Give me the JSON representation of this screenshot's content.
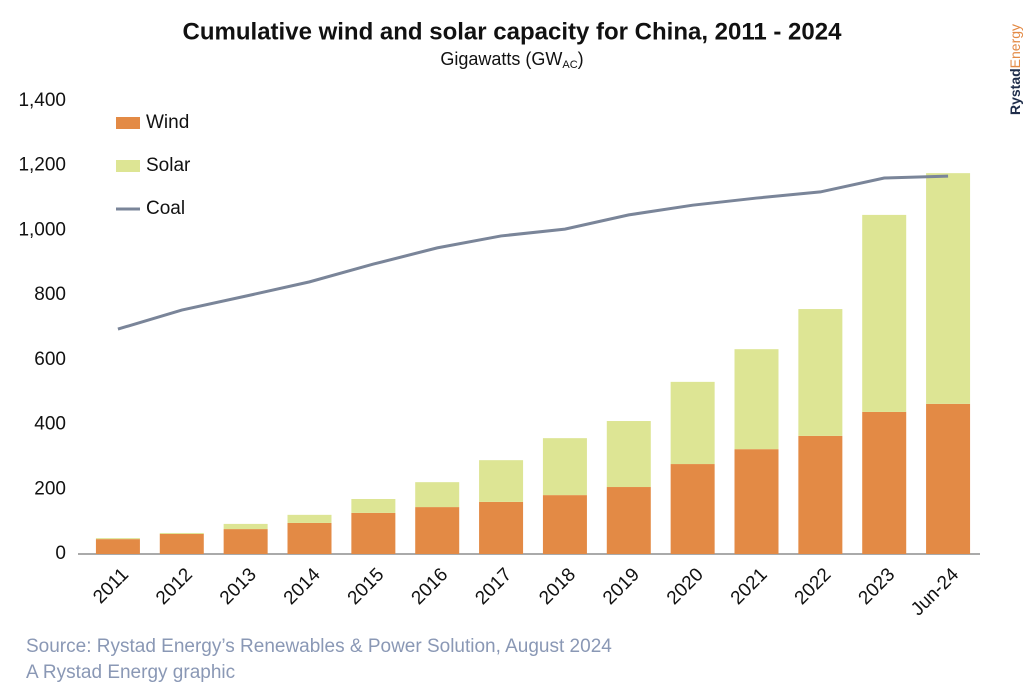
{
  "chart_data": {
    "type": "bar",
    "stacked": true,
    "title": "Cumulative wind and solar capacity for China, 2011 - 2024",
    "subtitle": {
      "text": "Gigawatts (GW",
      "sub": "AC",
      "close": ")"
    },
    "categories": [
      "2011",
      "2012",
      "2013",
      "2014",
      "2015",
      "2016",
      "2017",
      "2018",
      "2019",
      "2020",
      "2021",
      "2022",
      "2023",
      "Jun-24"
    ],
    "series": [
      {
        "name": "Wind",
        "color": "#e38a45",
        "values": [
          46,
          62,
          77,
          96,
          127,
          145,
          161,
          182,
          207,
          278,
          324,
          365,
          439,
          464
        ]
      },
      {
        "name": "Solar",
        "color": "#dde594",
        "values": [
          3,
          3,
          16,
          25,
          43,
          77,
          129,
          176,
          204,
          254,
          309,
          392,
          609,
          713
        ]
      },
      {
        "name": "Coal",
        "color": "#7a8599",
        "type": "line",
        "values": [
          695,
          754,
          797,
          841,
          896,
          946,
          983,
          1004,
          1048,
          1078,
          1100,
          1119,
          1162,
          1168
        ]
      }
    ],
    "ylim": [
      0,
      1400
    ],
    "yticks": [
      0,
      200,
      400,
      600,
      800,
      {
        "value": 1000,
        "label": "1,000"
      },
      {
        "value": 1200,
        "label": "1,200"
      },
      {
        "value": 1400,
        "label": "1,400"
      }
    ],
    "grid": false,
    "legend": "upper left",
    "source": [
      "Source: Rystad Energy’s Renewables & Power Solution, August 2024",
      "A Rystad Energy graphic"
    ],
    "brand": [
      "Rystad",
      "Energy"
    ]
  }
}
